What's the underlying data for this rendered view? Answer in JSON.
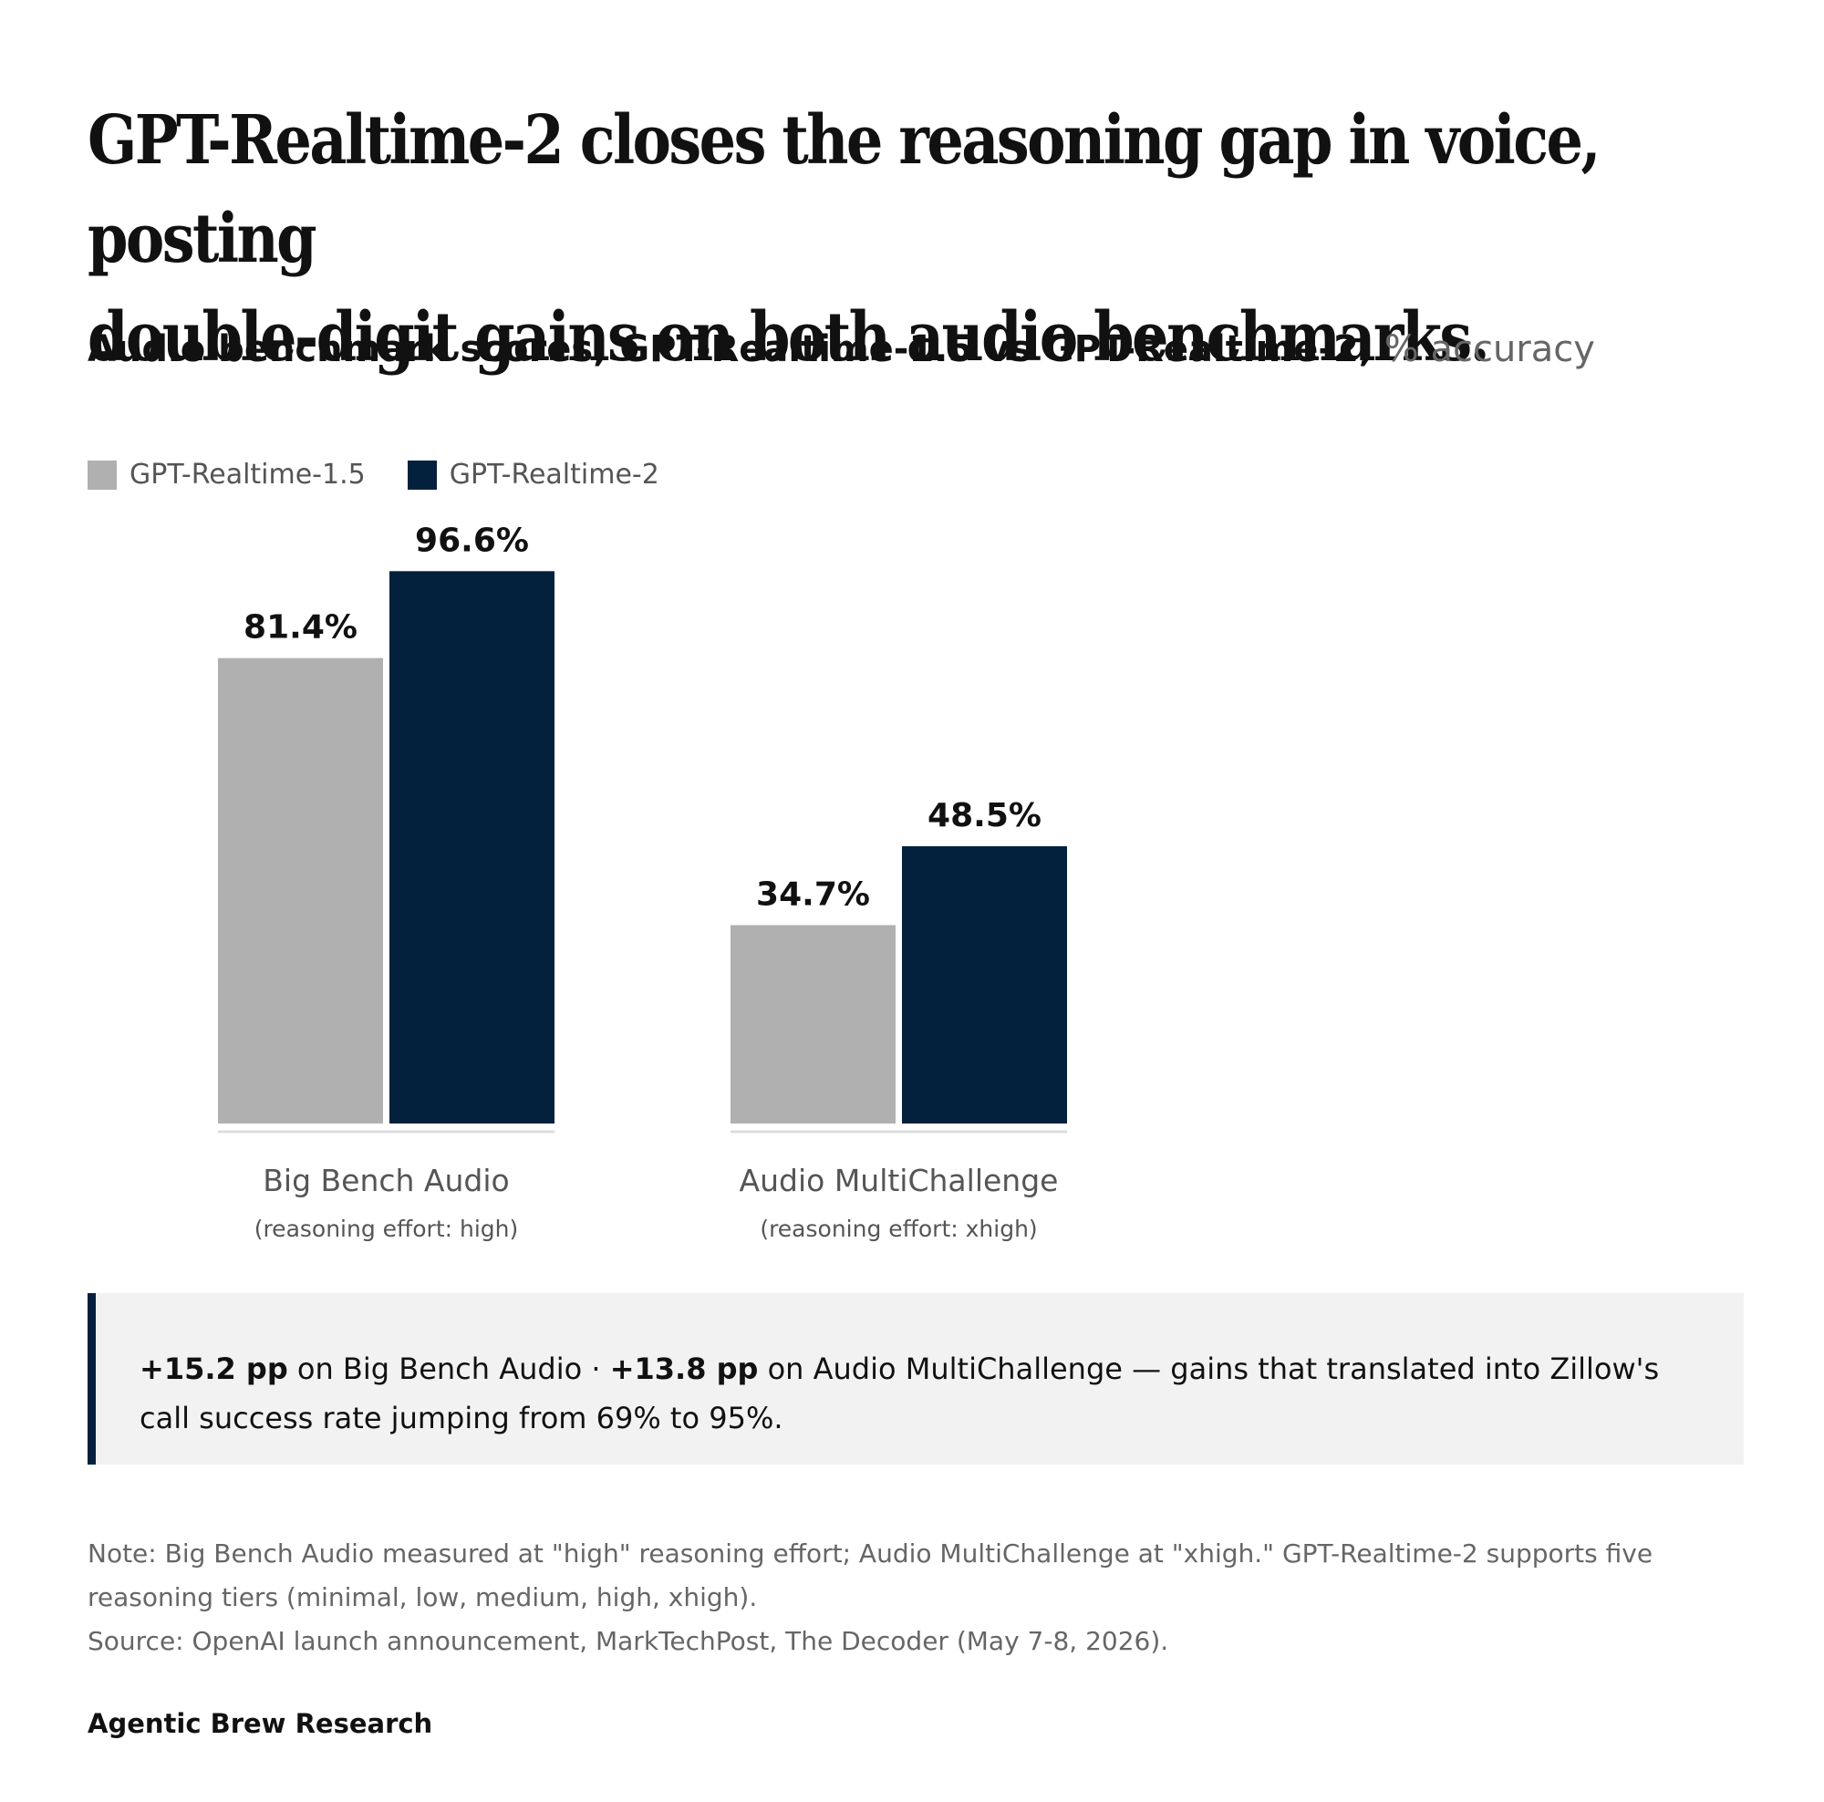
{
  "title_line1": "GPT-Realtime-2 closes the reasoning gap in voice, posting",
  "title_line2": "double-digit gains on both audio benchmarks.",
  "subtitle_main": "Audio benchmark scores, GPT-Realtime-1.5 vs GPT-Realtime-2,",
  "subtitle_unit": "% accuracy",
  "colors": {
    "series1": "#b0b0b0",
    "series2": "#03213d",
    "baseline": "#dddddd",
    "label": "#111111",
    "category": "#555555"
  },
  "chart_data": {
    "type": "bar",
    "categories": [
      "Big Bench Audio",
      "Audio MultiChallenge"
    ],
    "category_notes": [
      "(reasoning effort: high)",
      "(reasoning effort: xhigh)"
    ],
    "series": [
      {
        "name": "GPT-Realtime-1.5",
        "values": [
          81.4,
          34.7
        ],
        "labels": [
          "81.4%",
          "34.7%"
        ]
      },
      {
        "name": "GPT-Realtime-2",
        "values": [
          96.6,
          48.5
        ],
        "labels": [
          "96.6%",
          "48.5%"
        ]
      }
    ],
    "ylim": [
      0,
      100
    ],
    "grid": false,
    "legend": "top-left"
  },
  "callout": {
    "gain1": "+15.2 pp",
    "text1": " on Big Bench Audio · ",
    "gain2": "+13.8 pp",
    "text2": " on Audio MultiChallenge — gains that translated into Zillow's call success rate jumping from 69% to 95%."
  },
  "note_line1": "Note: Big Bench Audio measured at \"high\" reasoning effort; Audio MultiChallenge at \"xhigh.\" GPT-Realtime-2 supports five reasoning tiers (minimal, low, medium, high, xhigh).",
  "note_line2": "Source: OpenAI launch announcement, MarkTechPost, The Decoder (May 7-8, 2026).",
  "brand": "Agentic Brew Research"
}
